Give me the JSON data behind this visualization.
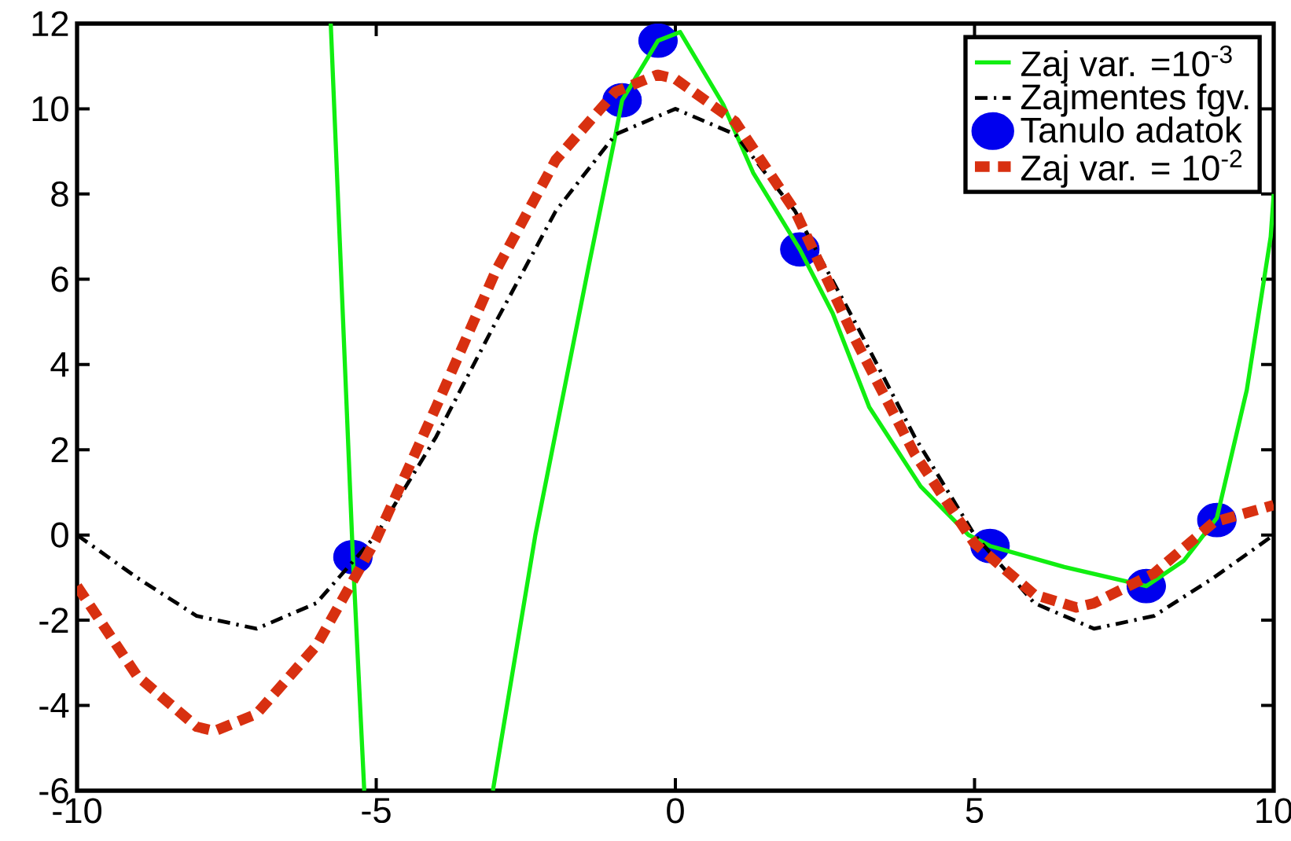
{
  "chart_data": {
    "type": "line",
    "xlim": [
      -10,
      10
    ],
    "ylim": [
      -6,
      12
    ],
    "xticks": [
      -10,
      -5,
      0,
      5,
      10
    ],
    "yticks": [
      -6,
      -4,
      -2,
      0,
      2,
      4,
      6,
      8,
      10,
      12
    ],
    "grid": false,
    "legend": "top right",
    "series": [
      {
        "name": "Zaj var. =10$^{-3}$",
        "color": "#11ee11",
        "line_style": "solid",
        "marker": "none",
        "x": [
          -5.76,
          -5.39,
          -5.2,
          -4.0,
          -3.05,
          -2.34,
          -1.45,
          -1.0,
          -0.89,
          -0.29,
          0.08,
          0.8,
          1.3,
          2.08,
          2.63,
          3.24,
          4.1,
          4.9,
          5.26,
          6.5,
          7.87,
          8.5,
          9.05,
          9.55,
          9.95,
          10
        ],
        "values": [
          12,
          -0.52,
          -6,
          null,
          -6,
          0,
          6.3,
          9.4,
          10.2,
          11.6,
          11.8,
          10.1,
          8.5,
          6.7,
          5.2,
          3.0,
          1.14,
          0.0,
          -0.26,
          -0.75,
          -1.2,
          -0.6,
          0.4,
          3.4,
          7.0,
          8.0
        ]
      },
      {
        "name": "Zajmentes fgv.",
        "color": "#000000",
        "line_style": "dashdot",
        "marker": "none",
        "x": [
          -10,
          -9,
          -8,
          -7,
          -6,
          -5,
          -4,
          -3,
          -2,
          -1,
          0,
          1,
          2,
          3,
          4,
          5,
          6,
          7,
          8,
          9,
          10
        ],
        "values": [
          0,
          -1.0,
          -1.9,
          -2.2,
          -1.6,
          0,
          2.3,
          5.0,
          7.6,
          9.4,
          10.0,
          9.4,
          7.6,
          5.0,
          2.3,
          0,
          -1.6,
          -2.2,
          -1.9,
          -1.0,
          0
        ]
      },
      {
        "name": "Tanulo adatok",
        "type": "scatter",
        "color": "#0000ee",
        "marker": "circle",
        "x": [
          -5.39,
          -0.89,
          -0.29,
          2.08,
          5.26,
          7.87,
          9.05
        ],
        "values": [
          -0.52,
          10.2,
          11.6,
          6.7,
          -0.26,
          -1.2,
          0.35
        ]
      },
      {
        "name": "Zaj var. = 10$^{-2}$",
        "color": "#d83010",
        "line_style": "dashed",
        "marker": "none",
        "x": [
          -10,
          -9,
          -8,
          -7.7,
          -7,
          -6,
          -5,
          -4,
          -3,
          -2,
          -1,
          -0.3,
          0,
          1,
          2,
          3,
          4,
          5,
          6,
          6.7,
          7,
          8,
          9,
          10
        ],
        "values": [
          -1.2,
          -3.3,
          -4.5,
          -4.6,
          -4.2,
          -2.6,
          -0.1,
          3.0,
          6.2,
          8.8,
          10.4,
          10.8,
          10.7,
          9.7,
          7.6,
          4.6,
          1.9,
          -0.2,
          -1.4,
          -1.7,
          -1.6,
          -0.9,
          0.3,
          0.7
        ]
      }
    ]
  }
}
